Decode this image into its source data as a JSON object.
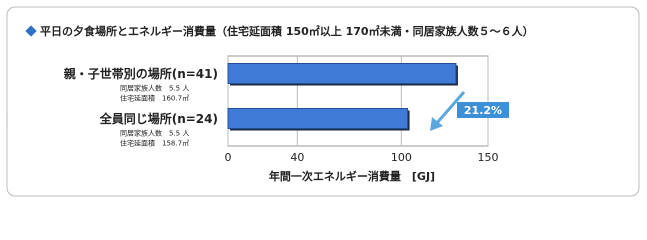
{
  "chart_data": {
    "type": "bar",
    "orientation": "horizontal",
    "title": "平日の夕食場所とエネルギー消費量（住宅延面積 150㎡以上 170㎡未満・同居家族人数５～６人）",
    "categories": [
      "親・子世帯別の場所(n=41)",
      "全員同じ場所(n=24)"
    ],
    "category_notes": [
      [
        "同居家族人数　5.5 人",
        "住宅延面積　160.7㎡"
      ],
      [
        "同居家族人数　5.5 人",
        "住宅延面積　158.7㎡"
      ]
    ],
    "values": [
      131.5,
      103.6
    ],
    "color": "#3f7bd6",
    "annotation": "21.2%",
    "xlabel": "年間一次エネルギー消費量　[GJ]",
    "xlim": [
      0,
      150
    ],
    "xticks": [
      0,
      40,
      100,
      150
    ],
    "grid": true
  }
}
